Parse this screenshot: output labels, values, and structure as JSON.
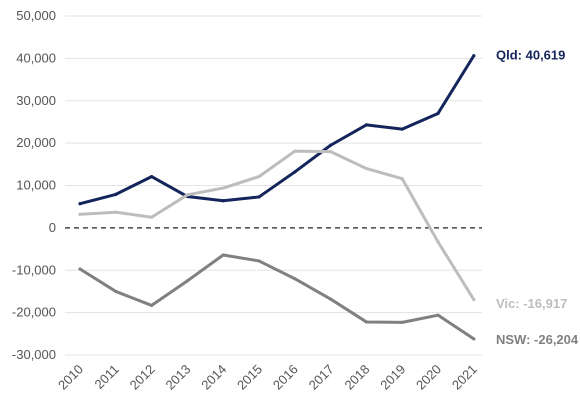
{
  "chart_data": {
    "type": "line",
    "x": [
      "2010",
      "2011",
      "2012",
      "2013",
      "2014",
      "2015",
      "2016",
      "2017",
      "2018",
      "2019",
      "2020",
      "2021"
    ],
    "ylim": [
      -30000,
      50000
    ],
    "yticks": [
      50000,
      40000,
      30000,
      20000,
      10000,
      0,
      -10000,
      -20000,
      -30000
    ],
    "ytick_labels": [
      "50,000",
      "40,000",
      "30,000",
      "20,000",
      "10,000",
      "0",
      "-10,000",
      "-20,000",
      "-30,000"
    ],
    "grid": "horizontal",
    "zero_line": "dashed",
    "series": [
      {
        "name": "Qld",
        "color": "#13255a",
        "values": [
          5700,
          7900,
          12100,
          7400,
          6400,
          7300,
          13200,
          19500,
          24300,
          23300,
          27000,
          40619
        ],
        "end_label": "Qld: 40,619"
      },
      {
        "name": "Vic",
        "color": "#bdbdbd",
        "values": [
          3200,
          3700,
          2500,
          7800,
          9400,
          12100,
          18100,
          18000,
          14000,
          11600,
          -3300,
          -16917
        ],
        "end_label": "Vic: -16,917"
      },
      {
        "name": "NSW",
        "color": "#808080",
        "values": [
          -9700,
          -15000,
          -18300,
          -12500,
          -6400,
          -7800,
          -12000,
          -16800,
          -22200,
          -22300,
          -20600,
          -26204
        ],
        "end_label": "NSW: -26,204"
      }
    ]
  }
}
